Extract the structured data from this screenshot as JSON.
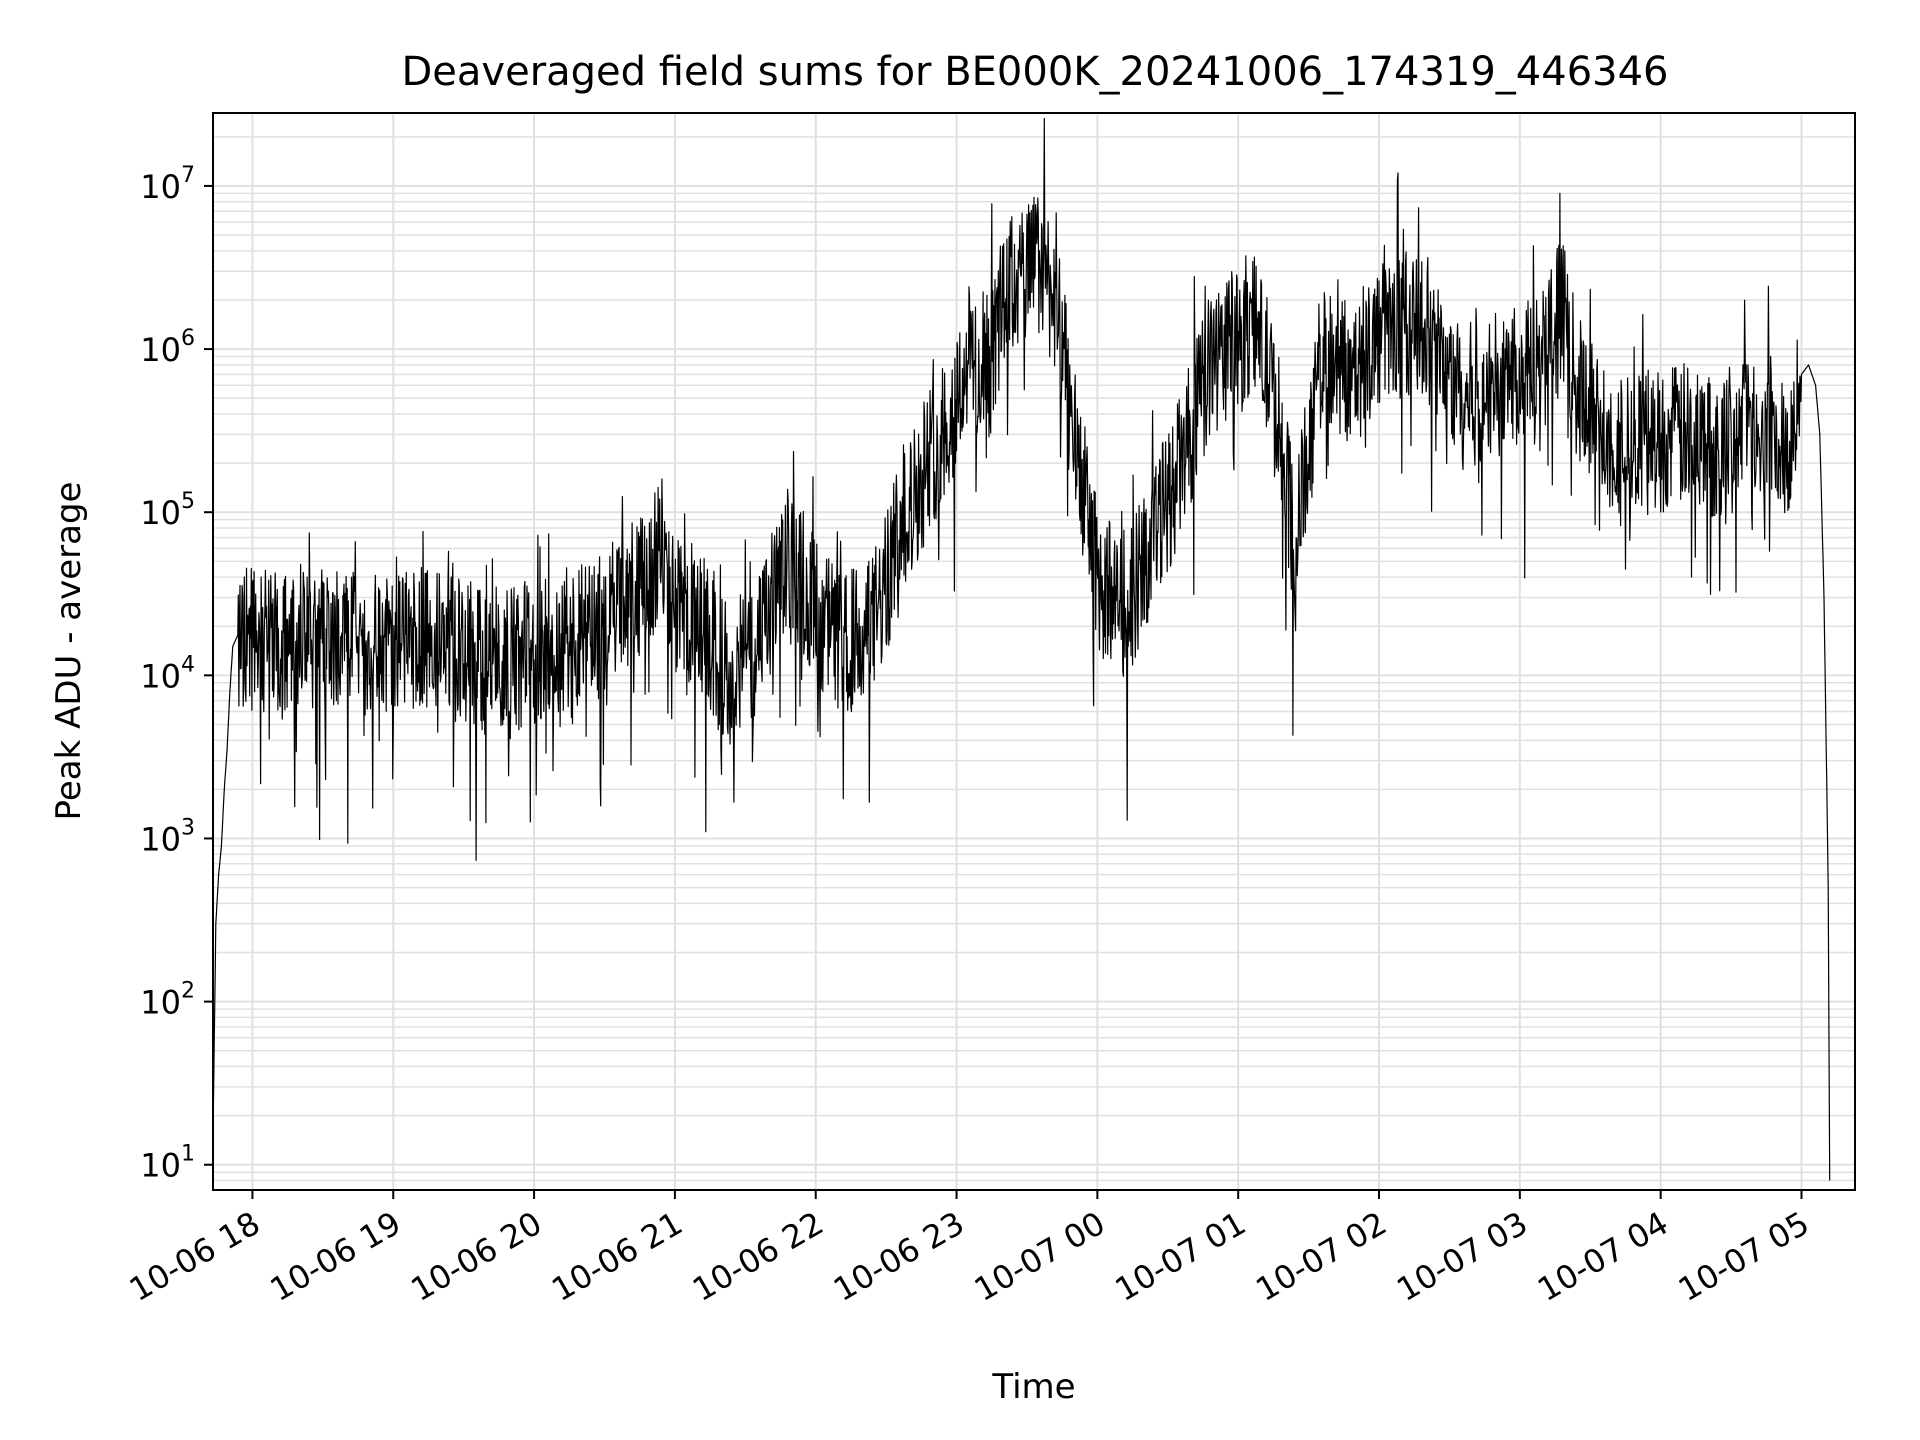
{
  "chart_data": {
    "type": "line",
    "title": "Deaveraged field sums for BE000K_20241006_174319_446346",
    "xlabel": "Time",
    "ylabel": "Peak ADU - average",
    "yscale": "log",
    "xlim_hours": [
      17.72,
      29.38
    ],
    "ylim": [
      7,
      28000000
    ],
    "grid": true,
    "line_color": "#000000",
    "grid_color": "#e0e0e0",
    "x_ticks": [
      {
        "label": "10-06 18",
        "hour": 18
      },
      {
        "label": "10-06 19",
        "hour": 19
      },
      {
        "label": "10-06 20",
        "hour": 20
      },
      {
        "label": "10-06 21",
        "hour": 21
      },
      {
        "label": "10-06 22",
        "hour": 22
      },
      {
        "label": "10-06 23",
        "hour": 23
      },
      {
        "label": "10-07 00",
        "hour": 24
      },
      {
        "label": "10-07 01",
        "hour": 25
      },
      {
        "label": "10-07 02",
        "hour": 26
      },
      {
        "label": "10-07 03",
        "hour": 27
      },
      {
        "label": "10-07 04",
        "hour": 28
      },
      {
        "label": "10-07 05",
        "hour": 29
      }
    ],
    "y_ticks": [
      {
        "base": "10",
        "exp": "1",
        "value": 10
      },
      {
        "base": "10",
        "exp": "2",
        "value": 100
      },
      {
        "base": "10",
        "exp": "3",
        "value": 1000
      },
      {
        "base": "10",
        "exp": "4",
        "value": 10000
      },
      {
        "base": "10",
        "exp": "5",
        "value": 100000
      },
      {
        "base": "10",
        "exp": "6",
        "value": 1000000
      },
      {
        "base": "10",
        "exp": "7",
        "value": 10000000
      }
    ],
    "series": [
      {
        "x_hours": [
          17.72,
          17.74,
          17.76,
          17.78,
          17.8,
          17.82,
          17.84,
          17.86,
          17.9,
          18.0,
          18.2,
          18.4,
          18.6,
          18.8,
          19.0,
          19.2,
          19.4,
          19.6,
          19.8,
          20.0,
          20.2,
          20.4,
          20.6,
          20.7,
          20.8,
          20.9,
          21.0,
          21.2,
          21.3,
          21.4,
          21.6,
          21.7,
          21.8,
          21.9,
          22.0,
          22.2,
          22.4,
          22.5,
          22.6,
          22.8,
          23.0,
          23.1,
          23.2,
          23.3,
          23.4,
          23.5,
          23.6,
          23.7,
          23.8,
          24.0,
          24.2,
          24.4,
          24.6,
          24.8,
          25.0,
          25.1,
          25.2,
          25.3,
          25.4,
          25.6,
          25.8,
          26.0,
          26.2,
          26.4,
          26.6,
          26.8,
          27.0,
          27.2,
          27.3,
          27.4,
          27.6,
          27.8,
          28.0,
          28.2,
          28.4,
          28.6,
          28.8,
          28.9,
          29.0,
          29.05,
          29.1,
          29.13,
          29.16,
          29.19,
          29.2
        ],
        "y": [
          15,
          300,
          600,
          900,
          2000,
          3500,
          8000,
          15000,
          18000,
          17000,
          15000,
          18000,
          16000,
          15000,
          14000,
          17000,
          15000,
          12000,
          13000,
          14000,
          16000,
          18000,
          25000,
          30000,
          40000,
          60000,
          30000,
          20000,
          12000,
          10000,
          15000,
          30000,
          50000,
          40000,
          25000,
          15000,
          20000,
          35000,
          80000,
          200000,
          500000,
          1000000,
          500000,
          1500000,
          2500000,
          3000000,
          3500000,
          2000000,
          500000,
          40000,
          25000,
          70000,
          200000,
          800000,
          1200000,
          1500000,
          800000,
          300000,
          60000,
          1000000,
          700000,
          1200000,
          1500000,
          1000000,
          500000,
          600000,
          700000,
          1000000,
          2000000,
          600000,
          300000,
          250000,
          280000,
          300000,
          250000,
          400000,
          300000,
          250000,
          700000,
          800000,
          600000,
          300000,
          30000,
          500,
          8
        ]
      }
    ]
  }
}
